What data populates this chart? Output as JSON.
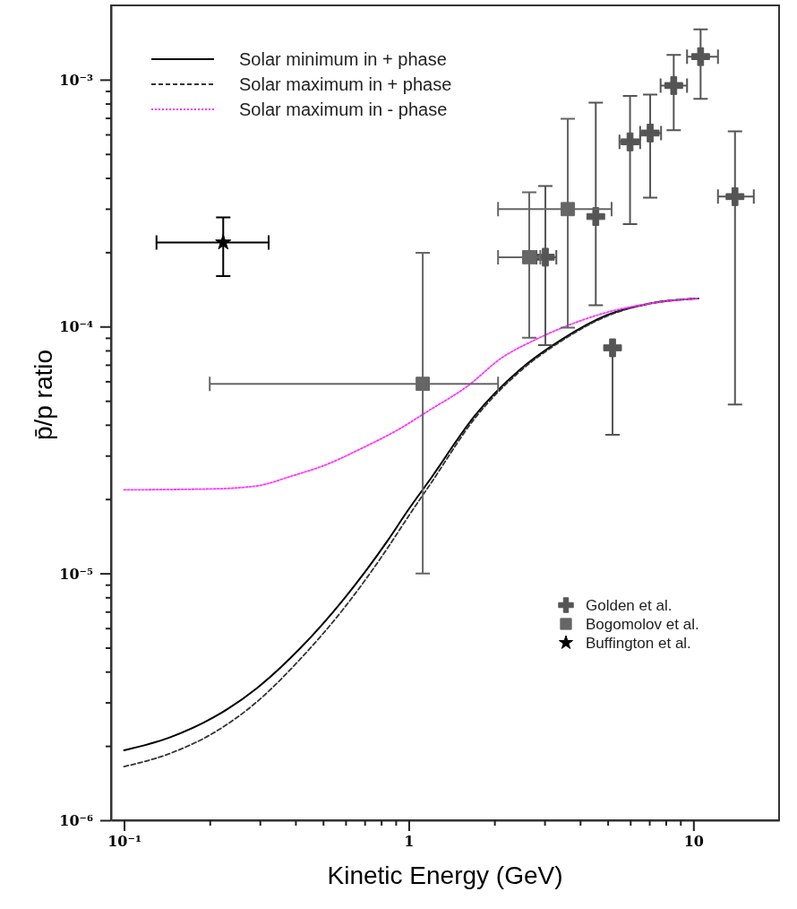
{
  "chart_data": {
    "type": "line",
    "xlabel": "Kinetic Energy (GeV)",
    "ylabel": "p̄/p ratio",
    "log": "xy",
    "xlim": [
      0.09,
      20
    ],
    "ylim": [
      1e-06,
      0.002
    ],
    "xticks": [
      {
        "value": 0.1,
        "label": "10⁻¹"
      },
      {
        "value": 0.2,
        "label": null
      },
      {
        "value": 0.3,
        "label": null
      },
      {
        "value": 0.4,
        "label": null
      },
      {
        "value": 0.5,
        "label": null
      },
      {
        "value": 0.6,
        "label": null
      },
      {
        "value": 0.7,
        "label": null
      },
      {
        "value": 0.8,
        "label": null
      },
      {
        "value": 0.9,
        "label": null
      },
      1,
      {
        "value": 2,
        "label": null
      },
      {
        "value": 3,
        "label": null
      },
      {
        "value": 4,
        "label": null
      },
      {
        "value": 5,
        "label": null
      },
      {
        "value": 6,
        "label": null
      },
      {
        "value": 7,
        "label": null
      },
      {
        "value": 8,
        "label": null
      },
      {
        "value": 9,
        "label": null
      },
      10
    ],
    "yticks": [
      {
        "value": 1e-06,
        "label": "10⁻⁶"
      },
      {
        "value": 2e-06,
        "label": null
      },
      {
        "value": 3e-06,
        "label": null
      },
      {
        "value": 4e-06,
        "label": null
      },
      {
        "value": 5e-06,
        "label": null
      },
      {
        "value": 6e-06,
        "label": null
      },
      {
        "value": 7e-06,
        "label": null
      },
      {
        "value": 8e-06,
        "label": null
      },
      {
        "value": 9e-06,
        "label": null
      },
      {
        "value": 1e-05,
        "label": "10⁻⁵"
      },
      {
        "value": 2e-05,
        "label": null
      },
      {
        "value": 3e-05,
        "label": null
      },
      {
        "value": 4e-05,
        "label": null
      },
      {
        "value": 5e-05,
        "label": null
      },
      {
        "value": 6e-05,
        "label": null
      },
      {
        "value": 7e-05,
        "label": null
      },
      {
        "value": 8e-05,
        "label": null
      },
      {
        "value": 9e-05,
        "label": null
      },
      {
        "value": 0.0001,
        "label": "10⁻⁴"
      },
      {
        "value": 0.0002,
        "label": null
      },
      {
        "value": 0.0003,
        "label": null
      },
      {
        "value": 0.0004,
        "label": null
      },
      {
        "value": 0.0005,
        "label": null
      },
      {
        "value": 0.0006,
        "label": null
      },
      {
        "value": 0.0007,
        "label": null
      },
      {
        "value": 0.0008,
        "label": null
      },
      {
        "value": 0.0009,
        "label": null
      },
      {
        "value": 0.001,
        "label": "10⁻³"
      }
    ],
    "legend": "top left",
    "grid": false,
    "series": [
      {
        "name": "Solar minimum in + phase",
        "color": "#000000",
        "line_style": "solid",
        "x": [
          0.1,
          0.144,
          0.205,
          0.292,
          0.416,
          0.593,
          0.844,
          1,
          1.2,
          1.71,
          2.44,
          3.47,
          4.95,
          7.05,
          10.4
        ],
        "values": [
          1.92e-06,
          2.16e-06,
          2.6e-06,
          3.42e-06,
          4.98e-06,
          7.9e-06,
          1.36e-05,
          1.82e-05,
          2.44e-05,
          4.37e-05,
          6.64e-05,
          8.9e-05,
          0.000111,
          0.000124,
          0.00013
        ]
      },
      {
        "name": "Solar maximum in + phase",
        "color": "#333333",
        "line_style": "dashed",
        "x": [
          0.1,
          0.144,
          0.205,
          0.292,
          0.416,
          0.593,
          0.844,
          1,
          1.2,
          1.71,
          2.44,
          3.47,
          4.95,
          7.05,
          10.4
        ],
        "values": [
          1.65e-06,
          1.86e-06,
          2.25e-06,
          3.01e-06,
          4.5e-06,
          7.24e-06,
          1.27e-05,
          1.71e-05,
          2.33e-05,
          4.26e-05,
          6.53e-05,
          8.8e-05,
          0.00011,
          0.000124,
          0.00013
        ]
      },
      {
        "name": "Solar maximum in - phase",
        "color": "#ff33ff",
        "line_style": "dotted",
        "x": [
          0.1,
          0.205,
          0.292,
          0.388,
          0.514,
          0.683,
          0.906,
          1.2,
          1.6,
          2.12,
          2.81,
          3.47,
          4.95,
          7.05,
          10.4
        ],
        "values": [
          2.18e-05,
          2.2e-05,
          2.26e-05,
          2.48e-05,
          2.76e-05,
          3.21e-05,
          3.79e-05,
          4.63e-05,
          5.71e-05,
          7.46e-05,
          8.89e-05,
          9.9e-05,
          0.000114,
          0.000124,
          0.00013
        ]
      },
      {
        "name": "Golden et al.",
        "type": "scatter",
        "marker": "cross",
        "color": "#555555",
        "x": [
          3.02,
          4.54,
          5.2,
          5.99,
          7.05,
          8.53,
          10.6,
          14
        ],
        "values": [
          0.000191,
          0.000279,
          8.2e-05,
          0.00056,
          0.000608,
          0.000947,
          0.00124,
          0.000336
        ],
        "errors": [
          [
            8.4e-05,
            0.000371
          ],
          [
            0.000122,
            0.000807
          ],
          [
            3.64e-05,
            8.2e-05
          ],
          [
            0.00026,
            0.00086
          ],
          [
            0.000333,
            0.00087
          ],
          [
            0.000624,
            0.00126
          ],
          [
            0.000836,
            0.0016
          ],
          [
            4.83e-05,
            0.000618
          ]
        ],
        "xerrors": [
          [
            2.81,
            3.3
          ],
          null,
          null,
          [
            5.5,
            6.5
          ],
          [
            6.5,
            7.7
          ],
          [
            7.67,
            9.5
          ],
          [
            9.5,
            12.2
          ],
          [
            12.2,
            16.3
          ]
        ]
      },
      {
        "name": "Bogomolov et al.",
        "type": "scatter",
        "marker": "square",
        "color": "#666666",
        "x": [
          1.12,
          2.65,
          3.62
        ],
        "values": [
          5.86e-05,
          0.000191,
          0.000299
        ],
        "errors": [
          [
            1e-05,
            0.000199
          ],
          [
            9e-05,
            0.00035
          ],
          [
            9.9e-05,
            0.000695
          ]
        ],
        "xerrors": [
          [
            0.2,
            2.06
          ],
          [
            2.06,
            2.9
          ],
          [
            2.06,
            5.16
          ]
        ]
      },
      {
        "name": "Buffington et al.",
        "type": "scatter",
        "marker": "star",
        "color": "#000000",
        "x": [
          0.223
        ],
        "values": [
          0.000219
        ],
        "errors": [
          [
            0.00016,
            0.000277
          ]
        ],
        "xerrors": [
          [
            0.13,
            0.322
          ]
        ]
      }
    ]
  }
}
